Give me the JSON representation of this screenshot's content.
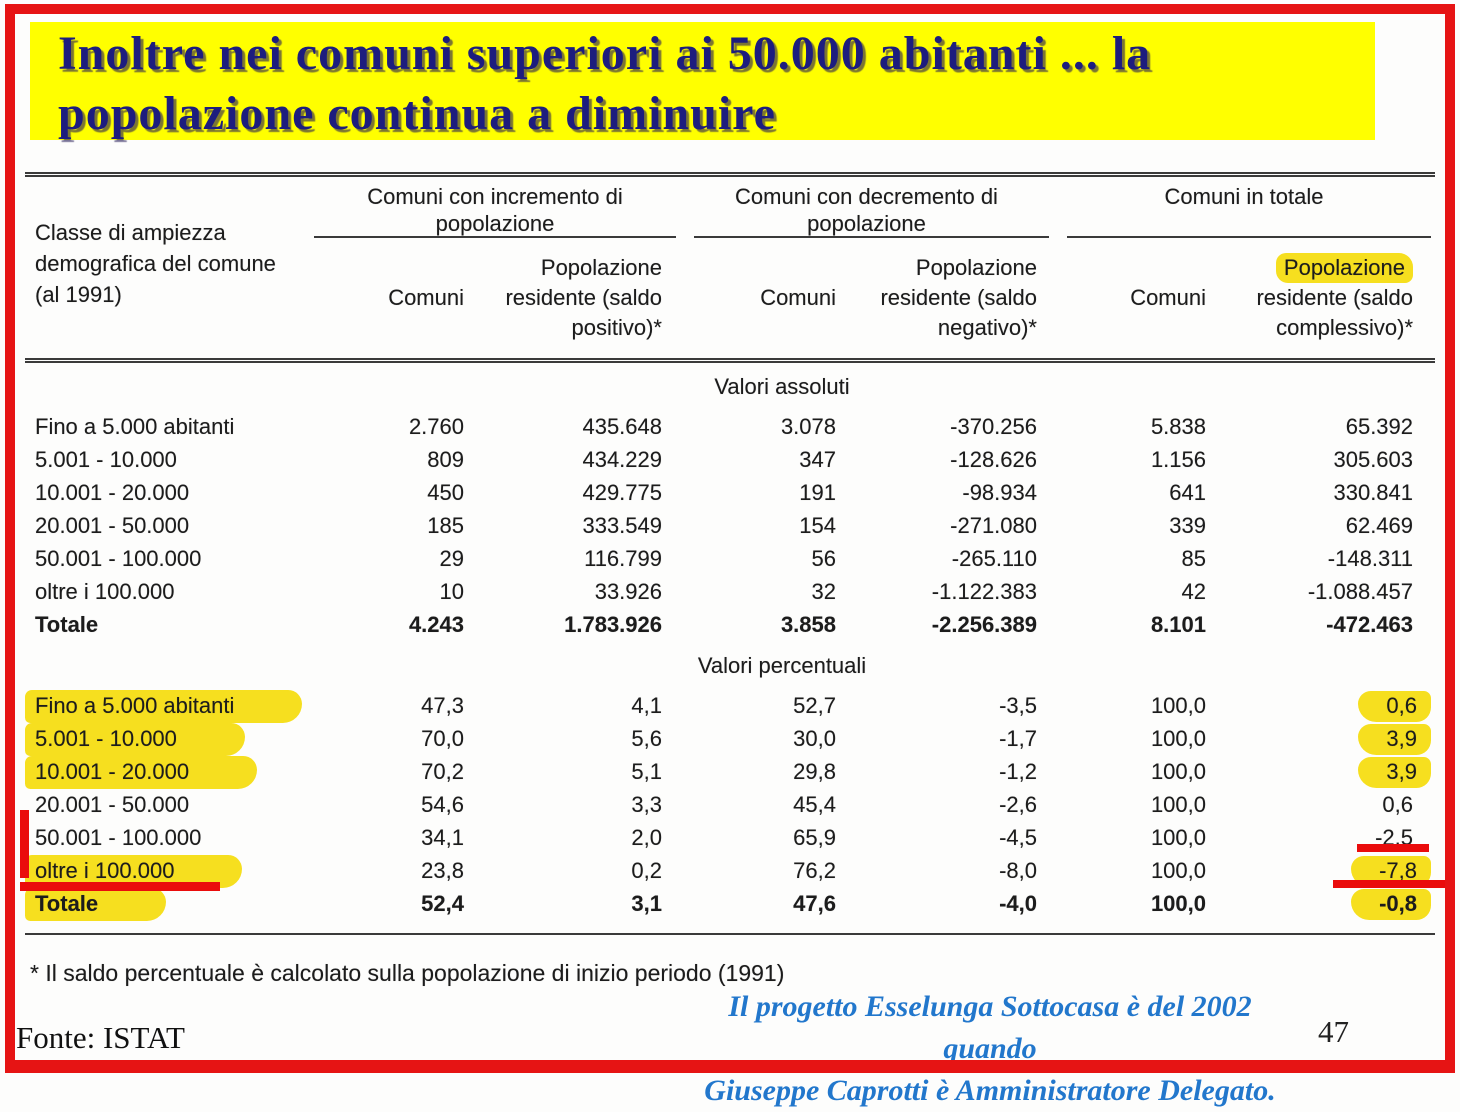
{
  "title": {
    "line1": "Inoltre nei comuni superiori ai 50.000 abitanti ... la",
    "line2": "popolazione continua a diminuire"
  },
  "table": {
    "row_header": "Classe di ampiezza demografica del comune (al 1991)",
    "groups": [
      {
        "label": "Comuni con incremento di popolazione",
        "sub1": "Comuni",
        "sub2": "Popolazione residente (saldo positivo)*"
      },
      {
        "label": "Comuni con decremento di popolazione",
        "sub1": "Comuni",
        "sub2": "Popolazione residente (saldo negativo)*"
      },
      {
        "label": "Comuni in totale",
        "sub1": "Comuni",
        "sub2_highlighted": "Popolazione",
        "sub2_rest": "residente (saldo complessivo)*"
      }
    ],
    "sections": [
      {
        "label": "Valori assoluti",
        "rows": [
          {
            "label": "Fino a 5.000 abitanti",
            "values": [
              "2.760",
              "435.648",
              "3.078",
              "-370.256",
              "5.838",
              "65.392"
            ]
          },
          {
            "label": "5.001 - 10.000",
            "values": [
              "809",
              "434.229",
              "347",
              "-128.626",
              "1.156",
              "305.603"
            ]
          },
          {
            "label": "10.001 - 20.000",
            "values": [
              "450",
              "429.775",
              "191",
              "-98.934",
              "641",
              "330.841"
            ]
          },
          {
            "label": "20.001 - 50.000",
            "values": [
              "185",
              "333.549",
              "154",
              "-271.080",
              "339",
              "62.469"
            ]
          },
          {
            "label": "50.001 - 100.000",
            "values": [
              "29",
              "116.799",
              "56",
              "-265.110",
              "85",
              "-148.311"
            ]
          },
          {
            "label": "oltre i 100.000",
            "values": [
              "10",
              "33.926",
              "32",
              "-1.122.383",
              "42",
              "-1.088.457"
            ]
          },
          {
            "label": "Totale",
            "bold": true,
            "values": [
              "4.243",
              "1.783.926",
              "3.858",
              "-2.256.389",
              "8.101",
              "-472.463"
            ]
          }
        ]
      },
      {
        "label": "Valori percentuali",
        "rows": [
          {
            "label": "Fino a 5.000 abitanti",
            "label_highlight": true,
            "values": [
              "47,3",
              "4,1",
              "52,7",
              "-3,5",
              "100,0",
              "0,6"
            ],
            "last_value_highlight": true
          },
          {
            "label": "5.001 - 10.000",
            "label_highlight": true,
            "values": [
              "70,0",
              "5,6",
              "30,0",
              "-1,7",
              "100,0",
              "3,9"
            ],
            "last_value_highlight": true
          },
          {
            "label": "10.001 - 20.000",
            "label_highlight": true,
            "values": [
              "70,2",
              "5,1",
              "29,8",
              "-1,2",
              "100,0",
              "3,9"
            ],
            "last_value_highlight": true
          },
          {
            "label": "20.001 - 50.000",
            "values": [
              "54,6",
              "3,3",
              "45,4",
              "-2,6",
              "100,0",
              "0,6"
            ]
          },
          {
            "label": "50.001 - 100.000",
            "values": [
              "34,1",
              "2,0",
              "65,9",
              "-4,5",
              "100,0",
              "-2,5"
            ],
            "last_value_red_underline": true
          },
          {
            "label": "oltre i 100.000",
            "label_highlight": true,
            "label_red_underline": true,
            "values": [
              "23,8",
              "0,2",
              "76,2",
              "-8,0",
              "100,0",
              "-7,8"
            ],
            "last_value_highlight": true,
            "last_value_red_underline": true
          },
          {
            "label": "Totale",
            "bold": true,
            "label_highlight": true,
            "values": [
              "52,4",
              "3,1",
              "47,6",
              "-4,0",
              "100,0",
              "-0,8"
            ],
            "last_value_highlight": true
          }
        ]
      }
    ]
  },
  "footnote": "* Il saldo percentuale è calcolato sulla popolazione di inizio periodo (1991)",
  "source": "Fonte: ISTAT",
  "caption": {
    "line1": "Il progetto Esselunga Sottocasa è del 2002 quando",
    "line2": "Giuseppe Caprotti è Amministratore Delegato."
  },
  "page_number": "47",
  "colors": {
    "frame_red": "#e61414",
    "title_bg": "#ffff00",
    "title_text": "#1d1d7e",
    "highlighter": "#f6df1f",
    "red_marker": "#ea0c0c",
    "caption_blue": "#2277cc"
  }
}
